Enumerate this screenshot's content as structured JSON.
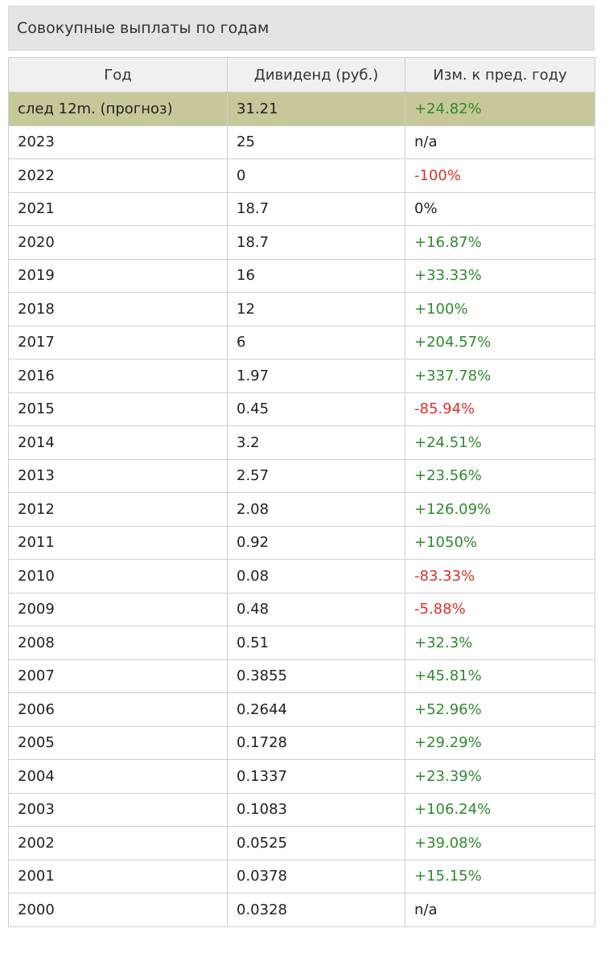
{
  "title": "Совокупные выплаты по годам",
  "colors": {
    "positive": "#2e8b2e",
    "negative": "#e0312b",
    "forecast_row_bg": "#c8c79a",
    "header_bg": "#f0f0f0",
    "title_bg": "#e4e4e4"
  },
  "table": {
    "headers": [
      "Год",
      "Дивиденд (руб.)",
      "Изм. к пред. году"
    ],
    "rows": [
      {
        "year": "след 12m. (прогноз)",
        "dividend": "31.21",
        "change": "+24.82%",
        "trend": "pos",
        "forecast": true
      },
      {
        "year": "2023",
        "dividend": "25",
        "change": "n/a",
        "trend": "neu"
      },
      {
        "year": "2022",
        "dividend": "0",
        "change": "-100%",
        "trend": "neg"
      },
      {
        "year": "2021",
        "dividend": "18.7",
        "change": "0%",
        "trend": "neu"
      },
      {
        "year": "2020",
        "dividend": "18.7",
        "change": "+16.87%",
        "trend": "pos"
      },
      {
        "year": "2019",
        "dividend": "16",
        "change": "+33.33%",
        "trend": "pos"
      },
      {
        "year": "2018",
        "dividend": "12",
        "change": "+100%",
        "trend": "pos"
      },
      {
        "year": "2017",
        "dividend": "6",
        "change": "+204.57%",
        "trend": "pos"
      },
      {
        "year": "2016",
        "dividend": "1.97",
        "change": "+337.78%",
        "trend": "pos"
      },
      {
        "year": "2015",
        "dividend": "0.45",
        "change": "-85.94%",
        "trend": "neg"
      },
      {
        "year": "2014",
        "dividend": "3.2",
        "change": "+24.51%",
        "trend": "pos"
      },
      {
        "year": "2013",
        "dividend": "2.57",
        "change": "+23.56%",
        "trend": "pos"
      },
      {
        "year": "2012",
        "dividend": "2.08",
        "change": "+126.09%",
        "trend": "pos"
      },
      {
        "year": "2011",
        "dividend": "0.92",
        "change": "+1050%",
        "trend": "pos"
      },
      {
        "year": "2010",
        "dividend": "0.08",
        "change": "-83.33%",
        "trend": "neg"
      },
      {
        "year": "2009",
        "dividend": "0.48",
        "change": "-5.88%",
        "trend": "neg"
      },
      {
        "year": "2008",
        "dividend": "0.51",
        "change": "+32.3%",
        "trend": "pos"
      },
      {
        "year": "2007",
        "dividend": "0.3855",
        "change": "+45.81%",
        "trend": "pos"
      },
      {
        "year": "2006",
        "dividend": "0.2644",
        "change": "+52.96%",
        "trend": "pos"
      },
      {
        "year": "2005",
        "dividend": "0.1728",
        "change": "+29.29%",
        "trend": "pos"
      },
      {
        "year": "2004",
        "dividend": "0.1337",
        "change": "+23.39%",
        "trend": "pos"
      },
      {
        "year": "2003",
        "dividend": "0.1083",
        "change": "+106.24%",
        "trend": "pos"
      },
      {
        "year": "2002",
        "dividend": "0.0525",
        "change": "+39.08%",
        "trend": "pos"
      },
      {
        "year": "2001",
        "dividend": "0.0378",
        "change": "+15.15%",
        "trend": "pos"
      },
      {
        "year": "2000",
        "dividend": "0.0328",
        "change": "n/a",
        "trend": "neu"
      }
    ]
  }
}
